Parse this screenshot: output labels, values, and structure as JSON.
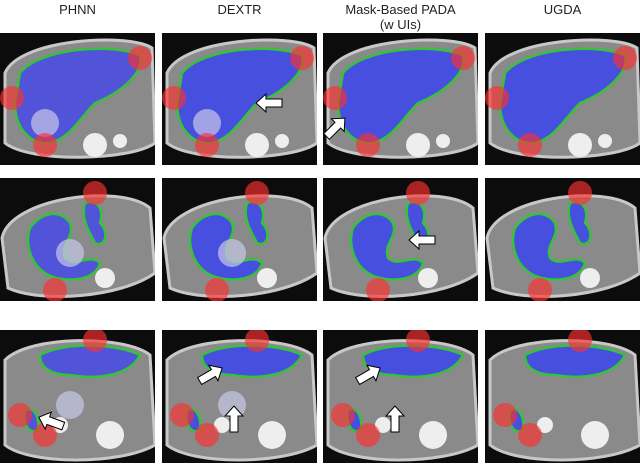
{
  "figure": {
    "columns": [
      {
        "title": [
          "PHNN"
        ]
      },
      {
        "title": [
          "DEXTR"
        ]
      },
      {
        "title": [
          "Mask-Based PADA",
          "(w UIs)"
        ]
      },
      {
        "title": [
          "UGDA"
        ]
      }
    ]
  }
}
